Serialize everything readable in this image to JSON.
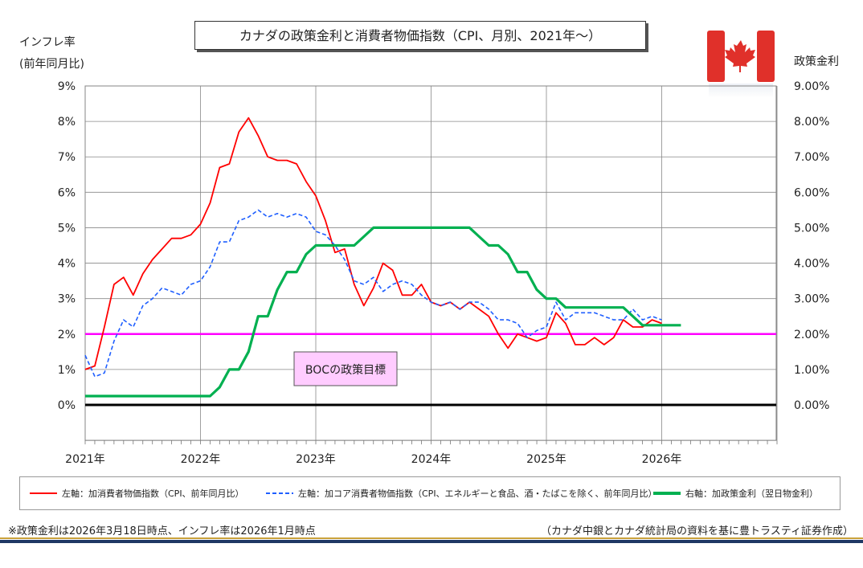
{
  "title": "カナダの政策金利と消費者物価指数（CPI、月別、2021年～）",
  "left_axis_label_line1": "インフレ率",
  "left_axis_label_line2": "(前年同月比)",
  "right_axis_label": "政策金利",
  "annotation_box": "BOCの政策目標",
  "colors": {
    "cpi": "#ff0000",
    "core_cpi": "#1f5fff",
    "policy_rate": "#00b050",
    "target": "#ff00ff",
    "zero_line": "#000000",
    "annotation_fill": "#ffccff",
    "flag_red": "#e0302a"
  },
  "legend": [
    "左軸：加消費者物価指数（CPI、前年同月比）",
    "左軸：加コア消費者物価指数（CPI、エネルギーと食品、酒・たばこを除く、前年同月比）",
    "右軸：加政策金利（翌日物金利）"
  ],
  "footnote_left": "※政策金利は2026年3月18日時点、インフレ率は2026年1月時点",
  "footnote_right": "（カナダ中銀とカナダ統計局の資料を基に豊トラスティ証券作成）",
  "chart_data": {
    "type": "line",
    "x_start": "2021-01",
    "x_labels": [
      "2021年",
      "2022年",
      "2023年",
      "2024年",
      "2025年",
      "2026年"
    ],
    "y_left_ticks": [
      "0%",
      "1%",
      "2%",
      "3%",
      "4%",
      "5%",
      "6%",
      "7%",
      "8%",
      "9%"
    ],
    "y_right_ticks": [
      "0.00%",
      "1.00%",
      "2.00%",
      "3.00%",
      "4.00%",
      "5.00%",
      "6.00%",
      "7.00%",
      "8.00%",
      "9.00%"
    ],
    "ylim": [
      -1,
      9
    ],
    "grid": true,
    "target_line": 2.0,
    "series": [
      {
        "name": "左軸：加消費者物価指数（CPI、前年同月比）",
        "axis": "left",
        "style": "solid",
        "values": [
          1.0,
          1.1,
          2.2,
          3.4,
          3.6,
          3.1,
          3.7,
          4.1,
          4.4,
          4.7,
          4.7,
          4.8,
          5.1,
          5.7,
          6.7,
          6.8,
          7.7,
          8.1,
          7.6,
          7.0,
          6.9,
          6.9,
          6.8,
          6.3,
          5.9,
          5.2,
          4.3,
          4.4,
          3.4,
          2.8,
          3.3,
          4.0,
          3.8,
          3.1,
          3.1,
          3.4,
          2.9,
          2.8,
          2.9,
          2.7,
          2.9,
          2.7,
          2.5,
          2.0,
          1.6,
          2.0,
          1.9,
          1.8,
          1.9,
          2.6,
          2.3,
          1.7,
          1.7,
          1.9,
          1.7,
          1.9,
          2.4,
          2.2,
          2.2,
          2.4,
          2.3
        ]
      },
      {
        "name": "左軸：加コア消費者物価指数（CPI、エネルギーと食品、酒・たばこを除く、前年同月比）",
        "axis": "left",
        "style": "dashed",
        "values": [
          1.4,
          0.8,
          0.9,
          1.8,
          2.4,
          2.2,
          2.8,
          3.0,
          3.3,
          3.2,
          3.1,
          3.4,
          3.5,
          3.9,
          4.6,
          4.6,
          5.2,
          5.3,
          5.5,
          5.3,
          5.4,
          5.3,
          5.4,
          5.3,
          4.9,
          4.8,
          4.5,
          4.1,
          3.5,
          3.4,
          3.6,
          3.2,
          3.4,
          3.5,
          3.4,
          3.1,
          2.9,
          2.8,
          2.9,
          2.7,
          2.9,
          2.9,
          2.7,
          2.4,
          2.4,
          2.3,
          1.9,
          2.1,
          2.2,
          2.9,
          2.4,
          2.6,
          2.6,
          2.6,
          2.5,
          2.4,
          2.4,
          2.7,
          2.4,
          2.5,
          2.4
        ]
      },
      {
        "name": "右軸：加政策金利（翌日物金利）",
        "axis": "right",
        "style": "solid-thick",
        "values": [
          0.25,
          0.25,
          0.25,
          0.25,
          0.25,
          0.25,
          0.25,
          0.25,
          0.25,
          0.25,
          0.25,
          0.25,
          0.25,
          0.25,
          0.5,
          1.0,
          1.0,
          1.5,
          2.5,
          2.5,
          3.25,
          3.75,
          3.75,
          4.25,
          4.5,
          4.5,
          4.5,
          4.5,
          4.5,
          4.75,
          5.0,
          5.0,
          5.0,
          5.0,
          5.0,
          5.0,
          5.0,
          5.0,
          5.0,
          5.0,
          5.0,
          4.75,
          4.5,
          4.5,
          4.25,
          3.75,
          3.75,
          3.25,
          3.0,
          3.0,
          2.75,
          2.75,
          2.75,
          2.75,
          2.75,
          2.75,
          2.75,
          2.5,
          2.25,
          2.25,
          2.25,
          2.25,
          2.25
        ]
      }
    ]
  }
}
